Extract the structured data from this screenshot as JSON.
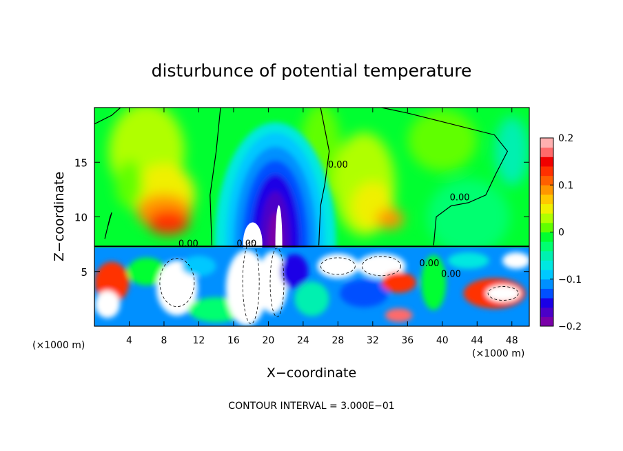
{
  "chart_data": {
    "type": "heatmap",
    "title": "disturbunce of potential temperature",
    "xlabel": "X−coordinate",
    "ylabel": "Z−coordinate",
    "x_unit_left": "(×1000 m)",
    "x_unit_right": "(×1000 m)",
    "footer": "CONTOUR INTERVAL = 3.000E−01",
    "xlim": [
      0,
      50
    ],
    "ylim": [
      0,
      20
    ],
    "x_ticks": [
      4,
      8,
      12,
      16,
      20,
      24,
      28,
      32,
      36,
      40,
      44,
      48
    ],
    "x_tick_labels": [
      "4",
      "8",
      "12",
      "16",
      "20",
      "24",
      "28",
      "32",
      "36",
      "40",
      "44",
      "48"
    ],
    "y_ticks": [
      5,
      10,
      15
    ],
    "y_tick_labels": [
      "5",
      "10",
      "15"
    ],
    "colorbar": {
      "range": [
        -0.2,
        0.2
      ],
      "ticks": [
        0.2,
        0.1,
        0,
        -0.1,
        -0.2
      ],
      "tick_labels": [
        "0.2",
        "0.1",
        "0",
        "−0.1",
        "−0.2"
      ],
      "colors": [
        "#7a00a8",
        "#4b00c8",
        "#1a00e6",
        "#0050ff",
        "#0090ff",
        "#00c8ff",
        "#00e8e0",
        "#00f0b0",
        "#00ff70",
        "#00ff30",
        "#60ff00",
        "#b0ff00",
        "#f0f000",
        "#ffc800",
        "#ff9600",
        "#ff6000",
        "#ff3000",
        "#f00000",
        "#ff6a6a",
        "#ffb0b0"
      ]
    },
    "contour_labels": [
      "0.00",
      "0.00",
      "0.00",
      "0.00",
      "0.00",
      "0.00"
    ],
    "fields": [
      {
        "x": 8,
        "z": 10,
        "value": 0.15
      },
      {
        "x": 5,
        "z": 13,
        "value": 0.08
      },
      {
        "x": 20,
        "z": 12,
        "value": -0.19
      },
      {
        "x": 21,
        "z": 15,
        "value": -0.14
      },
      {
        "x": 20,
        "z": 18,
        "value": -0.05
      },
      {
        "x": 30,
        "z": 12,
        "value": 0.08
      },
      {
        "x": 34,
        "z": 10,
        "value": 0.12
      },
      {
        "x": 40,
        "z": 16,
        "value": 0.03
      },
      {
        "x": 44,
        "z": 10,
        "value": -0.02
      },
      {
        "x": 44,
        "z": 3,
        "value": 0.2
      },
      {
        "x": 18,
        "z": 3,
        "value": 0.3
      },
      {
        "x": 10,
        "z": 3,
        "value": 0.3
      }
    ]
  }
}
